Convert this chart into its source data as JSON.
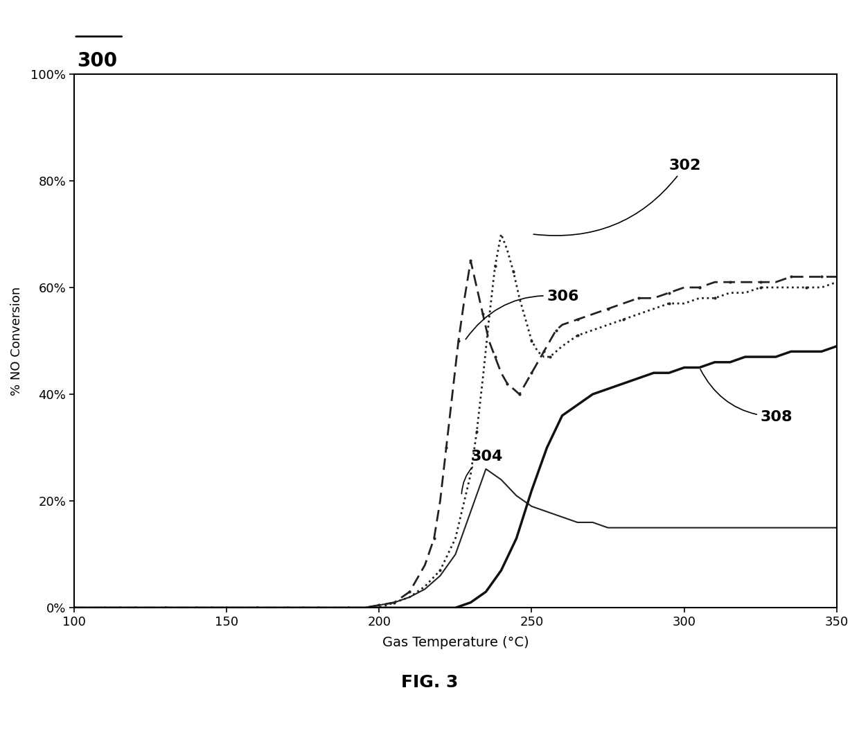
{
  "title": "300",
  "xlabel": "Gas Temperature (°C)",
  "ylabel": "% NO Conversion",
  "xlim": [
    100,
    350
  ],
  "ylim": [
    0,
    1.0
  ],
  "yticks": [
    0.0,
    0.2,
    0.4,
    0.6,
    0.8,
    1.0
  ],
  "ytick_labels": [
    "0%",
    "20%",
    "40%",
    "60%",
    "80%",
    "100%"
  ],
  "xticks": [
    100,
    150,
    200,
    250,
    300,
    350
  ],
  "fig_label": "FIG. 3",
  "curve302": {
    "x": [
      100,
      105,
      110,
      115,
      120,
      125,
      130,
      135,
      140,
      145,
      150,
      155,
      160,
      165,
      170,
      175,
      180,
      185,
      190,
      195,
      200,
      205,
      210,
      215,
      220,
      225,
      230,
      232,
      234,
      236,
      238,
      240,
      242,
      244,
      246,
      248,
      250,
      252,
      254,
      256,
      258,
      260,
      265,
      270,
      275,
      280,
      285,
      290,
      295,
      300,
      305,
      310,
      315,
      320,
      325,
      330,
      335,
      340,
      345,
      350
    ],
    "y": [
      0,
      0,
      0,
      0,
      0,
      0,
      0,
      0,
      0,
      0,
      0,
      0,
      0,
      0,
      0,
      0,
      0,
      0,
      0,
      0,
      0,
      0.01,
      0.02,
      0.04,
      0.07,
      0.13,
      0.25,
      0.33,
      0.43,
      0.54,
      0.64,
      0.7,
      0.67,
      0.63,
      0.58,
      0.54,
      0.5,
      0.48,
      0.47,
      0.47,
      0.48,
      0.49,
      0.51,
      0.52,
      0.53,
      0.54,
      0.55,
      0.56,
      0.57,
      0.57,
      0.58,
      0.58,
      0.59,
      0.59,
      0.6,
      0.6,
      0.6,
      0.6,
      0.6,
      0.61
    ],
    "style": "dotted",
    "color": "#222222",
    "linewidth": 2.0,
    "label": "302"
  },
  "curve304": {
    "x": [
      100,
      105,
      110,
      115,
      120,
      125,
      130,
      135,
      140,
      145,
      150,
      155,
      160,
      165,
      170,
      175,
      180,
      185,
      190,
      195,
      200,
      205,
      210,
      215,
      220,
      225,
      230,
      235,
      240,
      245,
      250,
      255,
      260,
      265,
      270,
      275,
      280,
      285,
      290,
      295,
      300,
      305,
      310,
      315,
      320,
      325,
      330,
      335,
      340,
      345,
      350
    ],
    "y": [
      0,
      0,
      0,
      0,
      0,
      0,
      0,
      0,
      0,
      0,
      0,
      0,
      0,
      0,
      0,
      0,
      0,
      0,
      0,
      0,
      0.005,
      0.01,
      0.02,
      0.035,
      0.06,
      0.1,
      0.18,
      0.26,
      0.24,
      0.21,
      0.19,
      0.18,
      0.17,
      0.16,
      0.16,
      0.15,
      0.15,
      0.15,
      0.15,
      0.15,
      0.15,
      0.15,
      0.15,
      0.15,
      0.15,
      0.15,
      0.15,
      0.15,
      0.15,
      0.15,
      0.15
    ],
    "style": "solid",
    "color": "#222222",
    "linewidth": 1.5,
    "label": "304"
  },
  "curve306": {
    "x": [
      100,
      105,
      110,
      115,
      120,
      125,
      130,
      135,
      140,
      145,
      150,
      155,
      160,
      165,
      170,
      175,
      180,
      185,
      190,
      195,
      200,
      205,
      210,
      215,
      218,
      220,
      222,
      224,
      226,
      228,
      230,
      232,
      234,
      236,
      238,
      240,
      242,
      244,
      246,
      248,
      250,
      252,
      254,
      256,
      258,
      260,
      265,
      270,
      275,
      280,
      285,
      290,
      295,
      300,
      305,
      310,
      315,
      320,
      325,
      330,
      335,
      340,
      345,
      350
    ],
    "y": [
      0,
      0,
      0,
      0,
      0,
      0,
      0,
      0,
      0,
      0,
      0,
      0,
      0,
      0,
      0,
      0,
      0,
      0,
      0,
      0,
      0.005,
      0.01,
      0.03,
      0.08,
      0.13,
      0.2,
      0.3,
      0.4,
      0.5,
      0.58,
      0.65,
      0.6,
      0.55,
      0.5,
      0.47,
      0.44,
      0.42,
      0.41,
      0.4,
      0.42,
      0.44,
      0.46,
      0.48,
      0.5,
      0.52,
      0.53,
      0.54,
      0.55,
      0.56,
      0.57,
      0.58,
      0.58,
      0.59,
      0.6,
      0.6,
      0.61,
      0.61,
      0.61,
      0.61,
      0.61,
      0.62,
      0.62,
      0.62,
      0.62
    ],
    "style": "dashed",
    "color": "#222222",
    "linewidth": 2.0,
    "label": "306"
  },
  "curve308": {
    "x": [
      100,
      105,
      110,
      115,
      120,
      125,
      130,
      135,
      140,
      145,
      150,
      155,
      160,
      165,
      170,
      175,
      180,
      185,
      190,
      195,
      200,
      205,
      210,
      215,
      220,
      225,
      230,
      235,
      240,
      245,
      250,
      255,
      260,
      265,
      270,
      275,
      280,
      285,
      290,
      295,
      300,
      305,
      310,
      315,
      320,
      325,
      330,
      335,
      340,
      345,
      350
    ],
    "y": [
      0,
      0,
      0,
      0,
      0,
      0,
      0,
      0,
      0,
      0,
      0,
      0,
      0,
      0,
      0,
      0,
      0,
      0,
      0,
      0,
      0,
      0,
      0,
      0,
      0,
      0,
      0.01,
      0.03,
      0.07,
      0.13,
      0.22,
      0.3,
      0.36,
      0.38,
      0.4,
      0.41,
      0.42,
      0.43,
      0.44,
      0.44,
      0.45,
      0.45,
      0.46,
      0.46,
      0.47,
      0.47,
      0.47,
      0.48,
      0.48,
      0.48,
      0.49
    ],
    "style": "solid",
    "color": "#111111",
    "linewidth": 2.5,
    "label": "308"
  }
}
